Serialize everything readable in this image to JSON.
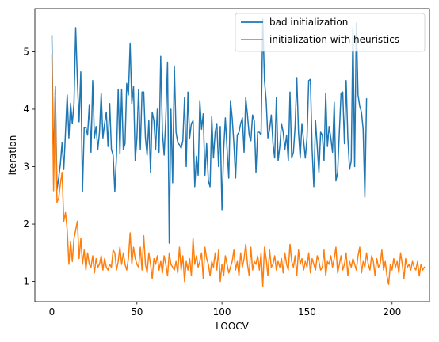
{
  "chart_data": {
    "type": "line",
    "title": "",
    "xlabel": "LOOCV",
    "ylabel": "iteration",
    "xlim": [
      -10,
      222
    ],
    "ylim": [
      0.65,
      5.75
    ],
    "xticks": [
      0,
      50,
      100,
      150,
      200
    ],
    "yticks": [
      1,
      2,
      3,
      4,
      5
    ],
    "grid": false,
    "legend_position": "top-right",
    "series": [
      {
        "name": "bad initialization",
        "color": "#1f77b4",
        "x_start": 0,
        "values": [
          5.28,
          2.95,
          4.4,
          2.6,
          2.8,
          3.05,
          3.42,
          2.95,
          3.6,
          4.25,
          3.5,
          4.1,
          3.75,
          4.1,
          5.42,
          4.5,
          3.78,
          4.65,
          2.57,
          3.68,
          3.68,
          3.55,
          4.08,
          3.25,
          4.5,
          3.5,
          3.7,
          3.3,
          3.6,
          4.28,
          3.5,
          3.75,
          3.95,
          3.35,
          4.1,
          3.3,
          3.2,
          2.57,
          3.2,
          4.35,
          3.22,
          4.35,
          3.3,
          3.4,
          4.45,
          4.25,
          5.15,
          4.1,
          4.4,
          3.1,
          3.5,
          4.35,
          3.3,
          4.3,
          4.3,
          3.5,
          3.2,
          3.8,
          2.9,
          3.95,
          3.8,
          3.3,
          4.0,
          3.25,
          4.92,
          3.6,
          3.2,
          3.85,
          4.82,
          1.67,
          4.0,
          2.72,
          4.75,
          3.6,
          3.42,
          3.38,
          3.32,
          3.45,
          4.2,
          3.0,
          4.3,
          3.5,
          3.75,
          3.8,
          2.65,
          3.18,
          2.85,
          4.15,
          3.65,
          3.92,
          2.85,
          3.4,
          2.75,
          2.65,
          3.87,
          3.15,
          3.6,
          3.75,
          3.0,
          3.7,
          2.25,
          3.3,
          3.85,
          3.3,
          2.8,
          4.15,
          3.85,
          3.4,
          2.8,
          3.55,
          3.6,
          3.75,
          3.85,
          3.25,
          4.2,
          3.9,
          3.55,
          3.45,
          3.9,
          3.8,
          2.9,
          3.6,
          3.6,
          3.55,
          5.57,
          4.5,
          4.15,
          3.5,
          3.65,
          3.9,
          3.4,
          3.15,
          4.2,
          3.1,
          3.35,
          3.75,
          3.6,
          3.3,
          3.55,
          3.1,
          4.3,
          3.15,
          3.25,
          3.7,
          4.55,
          3.6,
          3.15,
          3.75,
          3.45,
          3.15,
          3.5,
          4.5,
          4.52,
          3.3,
          2.65,
          3.8,
          3.35,
          2.9,
          3.6,
          3.55,
          3.1,
          4.28,
          3.35,
          3.7,
          3.5,
          3.25,
          4.12,
          2.75,
          2.9,
          3.6,
          4.28,
          4.3,
          3.4,
          4.5,
          3.5,
          2.95,
          3.1,
          5.42,
          3.0,
          5.5,
          4.25,
          4.05,
          3.95,
          3.65,
          2.47,
          4.18
        ]
      },
      {
        "name": "initialization with heuristics",
        "color": "#ff7f0e",
        "x_start": 0,
        "values": [
          4.95,
          2.58,
          4.25,
          2.38,
          2.45,
          2.7,
          2.9,
          2.05,
          2.2,
          1.9,
          1.3,
          1.7,
          1.35,
          1.75,
          1.9,
          2.05,
          1.4,
          1.75,
          1.3,
          1.55,
          1.2,
          1.5,
          1.3,
          1.25,
          1.45,
          1.15,
          1.4,
          1.25,
          1.3,
          1.45,
          1.2,
          1.4,
          1.25,
          1.2,
          1.3,
          1.25,
          1.55,
          1.5,
          1.2,
          1.35,
          1.6,
          1.3,
          1.5,
          1.3,
          1.2,
          1.4,
          1.85,
          1.3,
          1.6,
          1.4,
          1.3,
          1.25,
          1.6,
          1.2,
          1.8,
          1.3,
          1.15,
          1.5,
          1.3,
          1.05,
          1.4,
          1.3,
          1.45,
          1.2,
          1.35,
          1.15,
          1.45,
          1.3,
          1.1,
          1.5,
          1.3,
          1.25,
          1.2,
          1.35,
          1.15,
          1.6,
          1.2,
          1.45,
          1.0,
          1.35,
          1.2,
          1.4,
          1.1,
          1.75,
          1.3,
          1.45,
          1.25,
          1.35,
          1.5,
          1.05,
          1.6,
          1.4,
          1.3,
          1.1,
          1.35,
          1.25,
          1.5,
          1.2,
          1.55,
          1.0,
          1.3,
          1.1,
          1.45,
          1.3,
          1.15,
          1.25,
          1.35,
          1.55,
          1.2,
          1.35,
          1.1,
          1.5,
          1.25,
          1.4,
          1.65,
          1.3,
          1.1,
          1.6,
          1.2,
          1.35,
          1.3,
          1.45,
          1.2,
          1.5,
          0.92,
          1.6,
          1.4,
          1.1,
          1.55,
          1.25,
          1.3,
          1.45,
          1.2,
          1.35,
          1.25,
          1.4,
          1.15,
          1.5,
          1.3,
          1.2,
          1.65,
          1.35,
          1.25,
          1.45,
          1.1,
          1.55,
          1.3,
          1.4,
          1.2,
          1.35,
          1.25,
          1.5,
          1.15,
          1.4,
          1.3,
          1.2,
          1.45,
          1.35,
          1.2,
          1.25,
          1.55,
          1.1,
          1.35,
          1.3,
          1.45,
          1.25,
          1.4,
          1.6,
          1.15,
          1.3,
          1.45,
          1.2,
          1.3,
          1.5,
          1.1,
          1.35,
          1.25,
          1.4,
          1.3,
          1.2,
          1.45,
          1.6,
          1.15,
          1.35,
          1.25,
          1.5,
          1.3,
          1.2,
          1.45,
          1.35,
          1.1,
          1.4,
          1.25,
          1.3,
          1.55,
          1.2,
          1.35,
          1.1,
          0.95,
          1.3,
          1.2,
          1.4,
          1.25,
          1.35,
          1.15,
          1.5,
          1.3,
          1.05,
          1.4,
          1.25,
          1.3,
          1.2,
          1.35,
          1.25,
          1.2,
          1.35,
          1.1,
          1.3,
          1.2,
          1.25
        ]
      }
    ]
  }
}
